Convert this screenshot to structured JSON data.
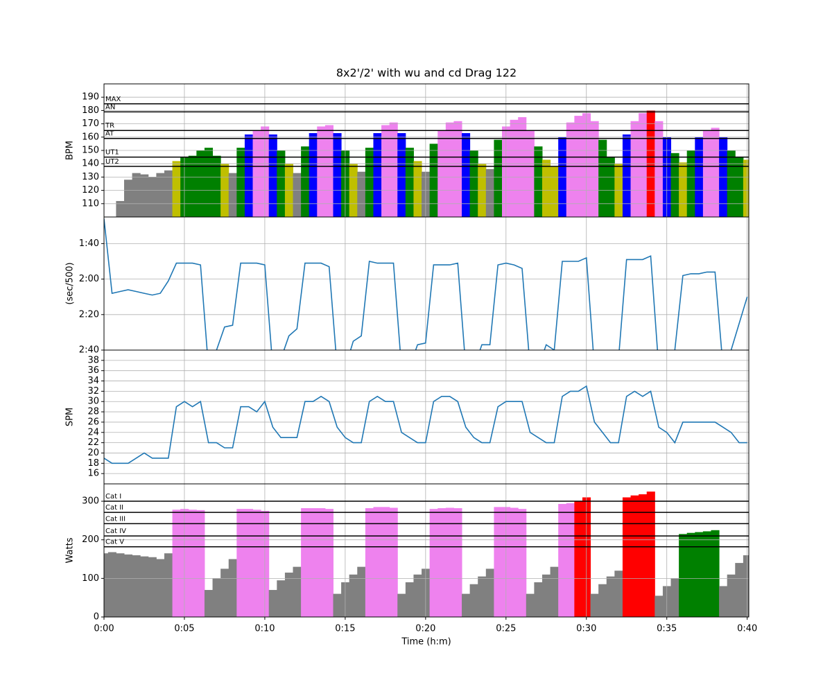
{
  "chart_data": {
    "type": "multi-panel",
    "title": "8x2'/2' with wu and cd Drag 122",
    "xlabel": "Time (h:m)",
    "xlim": [
      0,
      40.1
    ],
    "xticks": [
      {
        "value": 0,
        "label": "0:00"
      },
      {
        "value": 5,
        "label": "0:05"
      },
      {
        "value": 10,
        "label": "0:10"
      },
      {
        "value": 15,
        "label": "0:15"
      },
      {
        "value": 20,
        "label": "0:20"
      },
      {
        "value": 25,
        "label": "0:25"
      },
      {
        "value": 30,
        "label": "0:30"
      },
      {
        "value": 35,
        "label": "0:35"
      },
      {
        "value": 40,
        "label": "0:40"
      }
    ],
    "grid": true,
    "x": [
      0,
      0.5,
      1,
      1.5,
      2,
      2.5,
      3,
      3.5,
      4,
      4.5,
      5,
      5.5,
      6,
      6.5,
      7,
      7.5,
      8,
      8.5,
      9,
      9.5,
      10,
      10.5,
      11,
      11.5,
      12,
      12.5,
      13,
      13.5,
      14,
      14.5,
      15,
      15.5,
      16,
      16.5,
      17,
      17.5,
      18,
      18.5,
      19,
      19.5,
      20,
      20.5,
      21,
      21.5,
      22,
      22.5,
      23,
      23.5,
      24,
      24.5,
      25,
      25.5,
      26,
      26.5,
      27,
      27.5,
      28,
      28.5,
      29,
      29.5,
      30,
      30.5,
      31,
      31.5,
      32,
      32.5,
      33,
      33.5,
      34,
      34.5,
      35,
      35.5,
      36,
      36.5,
      37,
      37.5,
      38,
      38.5,
      39,
      39.5,
      40
    ],
    "panels": [
      {
        "type": "zone-bar",
        "ylabel": "BPM",
        "ylim": [
          100,
          200
        ],
        "yticks": [
          110,
          120,
          130,
          140,
          150,
          160,
          170,
          180,
          190
        ],
        "hlines": [
          {
            "value": 138,
            "label": "UT2"
          },
          {
            "value": 145,
            "label": "UT1"
          },
          {
            "value": 159,
            "label": "AT"
          },
          {
            "value": 165,
            "label": "TR"
          },
          {
            "value": 179,
            "label": "AN"
          },
          {
            "value": 185,
            "label": "MAX"
          }
        ],
        "zone_colors": [
          "#808080",
          "#bfbf00",
          "#008000",
          "#0000ff",
          "#ee82ee",
          "#ff0000",
          "#ff0000"
        ],
        "values": [
          95,
          97,
          112,
          128,
          133,
          132,
          130,
          133,
          135,
          142,
          145,
          146,
          150,
          152,
          146,
          140,
          133,
          152,
          162,
          165,
          168,
          162,
          150,
          140,
          133,
          153,
          163,
          168,
          169,
          163,
          150,
          140,
          134,
          152,
          163,
          169,
          171,
          163,
          152,
          142,
          134,
          155,
          165,
          171,
          172,
          163,
          150,
          140,
          136,
          158,
          168,
          173,
          175,
          165,
          153,
          143,
          138,
          160,
          171,
          176,
          178,
          172,
          158,
          145,
          140,
          162,
          172,
          178,
          180,
          172,
          160,
          148,
          141,
          150,
          160,
          165,
          167,
          160,
          150,
          145,
          143
        ]
      },
      {
        "type": "line",
        "ylabel": "(sec/500)",
        "ylim": [
          160,
          85
        ],
        "color": "#1f77b4",
        "yticks": [
          {
            "value": 100,
            "label": "1:40"
          },
          {
            "value": 120,
            "label": "2:00"
          },
          {
            "value": 140,
            "label": "2:20"
          },
          {
            "value": 160,
            "label": "2:40"
          }
        ],
        "values": [
          86,
          128,
          127,
          126,
          127,
          128,
          129,
          128,
          121,
          111,
          111,
          111,
          112,
          170,
          160,
          147,
          146,
          111,
          111,
          111,
          112,
          170,
          165,
          152,
          148,
          111,
          111,
          111,
          113,
          170,
          170,
          155,
          152,
          110,
          111,
          111,
          111,
          170,
          170,
          157,
          156,
          112,
          112,
          112,
          111,
          170,
          170,
          157,
          157,
          112,
          111,
          112,
          114,
          170,
          170,
          157,
          160,
          110,
          110,
          110,
          108,
          170,
          170,
          165,
          165,
          109,
          109,
          109,
          107,
          170,
          170,
          160,
          118,
          117,
          117,
          116,
          116,
          170,
          160,
          145,
          130
        ]
      },
      {
        "type": "line",
        "ylabel": "SPM",
        "ylim": [
          14,
          40
        ],
        "color": "#1f77b4",
        "yticks": [
          16,
          18,
          20,
          22,
          24,
          26,
          28,
          30,
          32,
          34,
          36,
          38
        ],
        "values": [
          19,
          18,
          18,
          18,
          19,
          20,
          19,
          19,
          19,
          29,
          30,
          29,
          30,
          22,
          22,
          21,
          21,
          29,
          29,
          28,
          30,
          25,
          23,
          23,
          23,
          30,
          30,
          31,
          30,
          25,
          23,
          22,
          22,
          30,
          31,
          30,
          30,
          24,
          23,
          22,
          22,
          30,
          31,
          31,
          30,
          25,
          23,
          22,
          22,
          29,
          30,
          30,
          30,
          24,
          23,
          22,
          22,
          31,
          32,
          32,
          33,
          26,
          24,
          22,
          22,
          31,
          32,
          31,
          32,
          25,
          24,
          22,
          26,
          26,
          26,
          26,
          26,
          25,
          24,
          22,
          22
        ]
      },
      {
        "type": "zone-bar",
        "ylabel": "Watts",
        "ylim": [
          0,
          345
        ],
        "yticks": [
          0,
          100,
          200,
          300
        ],
        "hlines": [
          {
            "value": 182,
            "label": "Cat V"
          },
          {
            "value": 210,
            "label": "Cat IV"
          },
          {
            "value": 242,
            "label": "Cat III"
          },
          {
            "value": 271,
            "label": "Cat II"
          },
          {
            "value": 300,
            "label": "Cat I"
          }
        ],
        "zone_colors": [
          "#808080",
          "#bfbf00",
          "#008000",
          "#0000ff",
          "#ee82ee",
          "#ff0000"
        ],
        "values": [
          165,
          168,
          165,
          162,
          160,
          157,
          155,
          150,
          165,
          278,
          280,
          278,
          277,
          70,
          100,
          125,
          150,
          280,
          280,
          278,
          275,
          70,
          95,
          115,
          130,
          282,
          282,
          282,
          280,
          60,
          90,
          110,
          130,
          282,
          285,
          285,
          283,
          60,
          90,
          110,
          125,
          280,
          282,
          283,
          282,
          60,
          85,
          105,
          125,
          285,
          285,
          283,
          280,
          60,
          90,
          110,
          130,
          293,
          295,
          300,
          310,
          60,
          85,
          105,
          120,
          310,
          315,
          318,
          325,
          55,
          80,
          100,
          215,
          218,
          220,
          222,
          225,
          80,
          110,
          140,
          160
        ]
      }
    ]
  }
}
